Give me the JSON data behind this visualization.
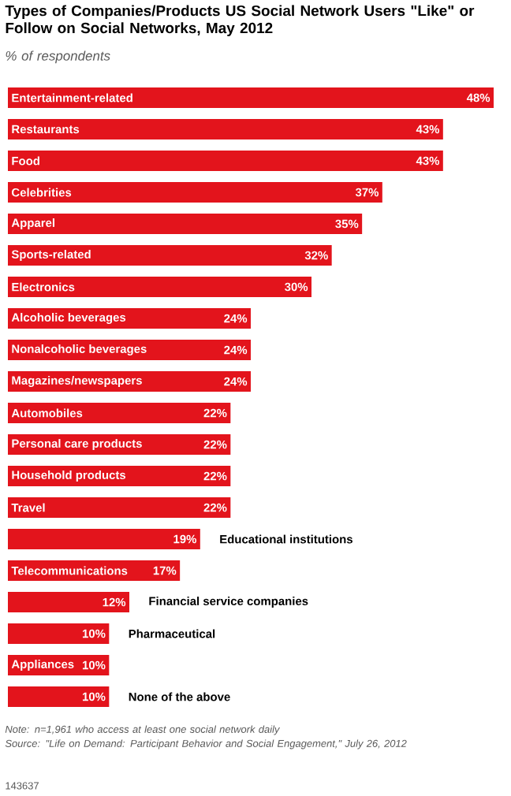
{
  "chart_data": {
    "type": "bar",
    "orientation": "horizontal",
    "title": "Types of Companies/Products US Social Network Users \"Like\" or Follow on Social Networks, May 2012",
    "subtitle": "% of respondents",
    "categories": [
      "Entertainment-related",
      "Restaurants",
      "Food",
      "Celebrities",
      "Apparel",
      "Sports-related",
      "Electronics",
      "Alcoholic beverages",
      "Nonalcoholic beverages",
      "Magazines/newspapers",
      "Automobiles",
      "Personal care products",
      "Household products",
      "Travel",
      "Educational institutions",
      "Telecommunications",
      "Financial service companies",
      "Pharmaceutical",
      "Appliances",
      "None of the above"
    ],
    "values": [
      48,
      43,
      43,
      37,
      35,
      32,
      30,
      24,
      24,
      24,
      22,
      22,
      22,
      22,
      19,
      17,
      12,
      10,
      10,
      10
    ],
    "value_labels": [
      "48%",
      "43%",
      "43%",
      "37%",
      "35%",
      "32%",
      "30%",
      "24%",
      "24%",
      "24%",
      "22%",
      "22%",
      "22%",
      "22%",
      "19%",
      "17%",
      "12%",
      "10%",
      "10%",
      "10%"
    ],
    "color": "#e3141c",
    "annotations": [
      "Note: n=1,961 who access at least one social network daily",
      "Source: \"Life on Demand: Participant Behavior and Social Engagement,\" July 26, 2012",
      "143637"
    ]
  }
}
